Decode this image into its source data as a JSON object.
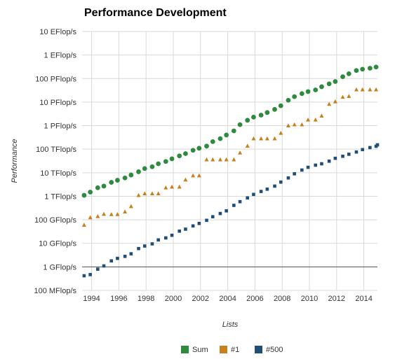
{
  "chart_data": {
    "type": "scatter",
    "title": "Performance Development",
    "xlabel": "Lists",
    "ylabel": "Performance",
    "x_ticks": [
      1994,
      1996,
      1998,
      2000,
      2002,
      2004,
      2006,
      2008,
      2010,
      2012,
      2014
    ],
    "xlim": [
      1993.3,
      2015.0
    ],
    "y_scale": "log",
    "y_ticks": [
      {
        "value": 0.1,
        "label": "100 MFlop/s"
      },
      {
        "value": 1,
        "label": "1 GFlop/s"
      },
      {
        "value": 10,
        "label": "10 GFlop/s"
      },
      {
        "value": 100,
        "label": "100 GFlop/s"
      },
      {
        "value": 1000,
        "label": "1 TFlop/s"
      },
      {
        "value": 10000,
        "label": "10 TFlop/s"
      },
      {
        "value": 100000,
        "label": "100 TFlop/s"
      },
      {
        "value": 1000000,
        "label": "1 PFlop/s"
      },
      {
        "value": 10000000,
        "label": "10 PFlop/s"
      },
      {
        "value": 100000000,
        "label": "100 PFlop/s"
      },
      {
        "value": 1000000000,
        "label": "1 EFlop/s"
      },
      {
        "value": 10000000000,
        "label": "10 EFlop/s"
      }
    ],
    "y_unit": "GFlop/s",
    "grid": true,
    "legend_position": "bottom-center",
    "series": [
      {
        "name": "Sum",
        "color": "#2e8b3e",
        "marker": "circle",
        "points": [
          [
            1993.45,
            1100
          ],
          [
            1993.9,
            1500
          ],
          [
            1994.45,
            2300
          ],
          [
            1994.9,
            2700
          ],
          [
            1995.45,
            3900
          ],
          [
            1995.9,
            4800
          ],
          [
            1996.45,
            6000
          ],
          [
            1996.9,
            8000
          ],
          [
            1997.45,
            11000
          ],
          [
            1997.9,
            15000
          ],
          [
            1998.45,
            18000
          ],
          [
            1998.9,
            24000
          ],
          [
            1999.45,
            30000
          ],
          [
            1999.9,
            39000
          ],
          [
            2000.45,
            52000
          ],
          [
            2000.9,
            65000
          ],
          [
            2001.45,
            90000
          ],
          [
            2001.9,
            110000
          ],
          [
            2002.45,
            135000
          ],
          [
            2002.9,
            210000
          ],
          [
            2003.45,
            280000
          ],
          [
            2003.9,
            400000
          ],
          [
            2004.45,
            600000
          ],
          [
            2004.9,
            1100000
          ],
          [
            2005.45,
            1700000
          ],
          [
            2005.9,
            2300000
          ],
          [
            2006.45,
            2800000
          ],
          [
            2006.9,
            3600000
          ],
          [
            2007.45,
            4900000
          ],
          [
            2007.9,
            7000000
          ],
          [
            2008.45,
            12000000
          ],
          [
            2008.9,
            17000000
          ],
          [
            2009.45,
            23000000
          ],
          [
            2009.9,
            28000000
          ],
          [
            2010.45,
            33000000
          ],
          [
            2010.9,
            45000000
          ],
          [
            2011.45,
            60000000
          ],
          [
            2011.9,
            75000000
          ],
          [
            2012.45,
            120000000
          ],
          [
            2012.9,
            160000000
          ],
          [
            2013.45,
            220000000
          ],
          [
            2013.9,
            250000000
          ],
          [
            2014.45,
            275000000
          ],
          [
            2014.9,
            310000000
          ]
        ]
      },
      {
        "name": "#1",
        "color": "#c8801c",
        "marker": "triangle",
        "points": [
          [
            1993.45,
            60
          ],
          [
            1993.9,
            125
          ],
          [
            1994.45,
            140
          ],
          [
            1994.9,
            175
          ],
          [
            1995.45,
            170
          ],
          [
            1995.9,
            170
          ],
          [
            1996.45,
            220
          ],
          [
            1996.9,
            370
          ],
          [
            1997.45,
            1100
          ],
          [
            1997.9,
            1300
          ],
          [
            1998.45,
            1300
          ],
          [
            1998.9,
            1300
          ],
          [
            1999.45,
            2300
          ],
          [
            1999.9,
            2500
          ],
          [
            2000.45,
            2500
          ],
          [
            2000.9,
            5000
          ],
          [
            2001.45,
            7500
          ],
          [
            2001.9,
            7500
          ],
          [
            2002.45,
            36000
          ],
          [
            2002.9,
            36000
          ],
          [
            2003.45,
            36000
          ],
          [
            2003.9,
            36000
          ],
          [
            2004.45,
            36000
          ],
          [
            2004.9,
            70000
          ],
          [
            2005.45,
            137000
          ],
          [
            2005.9,
            280000
          ],
          [
            2006.45,
            280000
          ],
          [
            2006.9,
            280000
          ],
          [
            2007.45,
            280000
          ],
          [
            2007.9,
            480000
          ],
          [
            2008.45,
            1000000
          ],
          [
            2008.9,
            1100000
          ],
          [
            2009.45,
            1100000
          ],
          [
            2009.9,
            1760000
          ],
          [
            2010.45,
            1760000
          ],
          [
            2010.9,
            2600000
          ],
          [
            2011.45,
            8200000
          ],
          [
            2011.9,
            10500000
          ],
          [
            2012.45,
            16300000
          ],
          [
            2012.9,
            17600000
          ],
          [
            2013.45,
            33900000
          ],
          [
            2013.9,
            33900000
          ],
          [
            2014.45,
            33900000
          ],
          [
            2014.9,
            33900000
          ]
        ]
      },
      {
        "name": "#500",
        "color": "#1f4e79",
        "marker": "square",
        "points": [
          [
            1993.45,
            0.42
          ],
          [
            1993.9,
            0.47
          ],
          [
            1994.45,
            0.8
          ],
          [
            1994.9,
            1.1
          ],
          [
            1995.45,
            1.8
          ],
          [
            1995.9,
            2.3
          ],
          [
            1996.45,
            2.8
          ],
          [
            1996.9,
            3.6
          ],
          [
            1997.45,
            6
          ],
          [
            1997.9,
            7.7
          ],
          [
            1998.45,
            9.5
          ],
          [
            1998.9,
            14
          ],
          [
            1999.45,
            17
          ],
          [
            1999.9,
            22
          ],
          [
            2000.45,
            33
          ],
          [
            2000.9,
            40
          ],
          [
            2001.45,
            55
          ],
          [
            2001.9,
            70
          ],
          [
            2002.45,
            95
          ],
          [
            2002.9,
            135
          ],
          [
            2003.45,
            185
          ],
          [
            2003.9,
            240
          ],
          [
            2004.45,
            410
          ],
          [
            2004.9,
            590
          ],
          [
            2005.45,
            850
          ],
          [
            2005.9,
            1200
          ],
          [
            2006.45,
            1600
          ],
          [
            2006.9,
            2000
          ],
          [
            2007.45,
            2700
          ],
          [
            2007.9,
            4000
          ],
          [
            2008.45,
            6000
          ],
          [
            2008.9,
            9000
          ],
          [
            2009.45,
            13000
          ],
          [
            2009.9,
            17000
          ],
          [
            2010.45,
            21000
          ],
          [
            2010.9,
            24000
          ],
          [
            2011.45,
            31000
          ],
          [
            2011.9,
            41000
          ],
          [
            2012.45,
            50000
          ],
          [
            2012.9,
            61000
          ],
          [
            2013.45,
            76000
          ],
          [
            2013.9,
            96000
          ],
          [
            2014.45,
            117000
          ],
          [
            2014.9,
            133000
          ],
          [
            2015.0,
            153000
          ]
        ]
      }
    ]
  }
}
